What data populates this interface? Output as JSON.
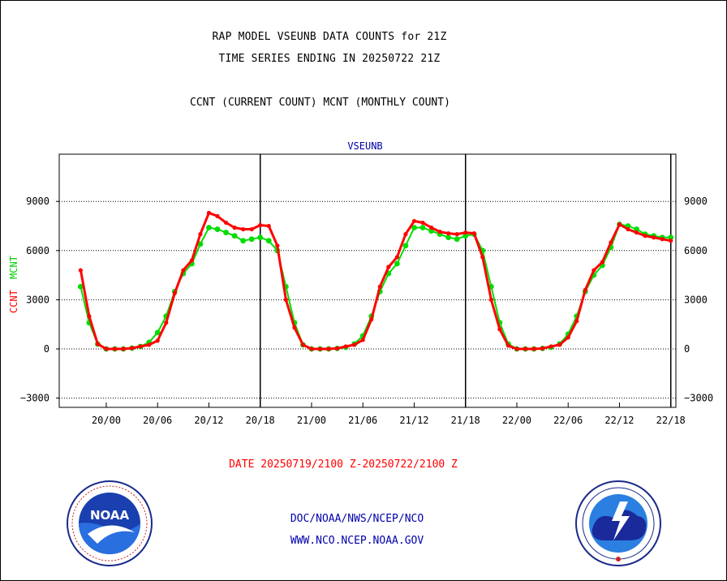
{
  "header": {
    "title_line1": "RAP MODEL VSEUNB DATA COUNTS for 21Z",
    "title_line2": "TIME SERIES ENDING IN 20250722 21Z",
    "subtitle": "CCNT (CURRENT COUNT) MCNT (MONTHLY COUNT)"
  },
  "footer": {
    "date_range": "DATE 20250719/2100 Z-20250722/2100 Z",
    "link1": "DOC/NOAA/NWS/NCEP/NCO",
    "link2": "WWW.NCO.NCEP.NOAA.GOV"
  },
  "logos": {
    "noaa_text": "NOAA",
    "noaa_ring": "NATIONAL OCEANIC AND ATMOSPHERIC ADMINISTRATION · U.S. DEPARTMENT OF COMMERCE",
    "nws_ring": "NATIONAL WEATHER SERVICE"
  },
  "colors": {
    "ccnt": "#ff0000",
    "mcnt": "#00dd00",
    "title": "#000000",
    "panel_label": "#0000aa"
  },
  "chart_data": {
    "type": "line",
    "title": "VSEUNB",
    "ylabel_left_ccnt": "CCNT",
    "ylabel_left_mcnt": "MCNT",
    "ylim": [
      -3500,
      12000
    ],
    "y_ticks": [
      -3000,
      0,
      3000,
      6000,
      9000
    ],
    "x_range_hours": [
      -3,
      69
    ],
    "x_ticks": [
      {
        "h": 3,
        "label": "20/00"
      },
      {
        "h": 9,
        "label": "20/06"
      },
      {
        "h": 15,
        "label": "20/12"
      },
      {
        "h": 21,
        "label": "20/18"
      },
      {
        "h": 27,
        "label": "21/00"
      },
      {
        "h": 33,
        "label": "21/06"
      },
      {
        "h": 39,
        "label": "21/12"
      },
      {
        "h": 45,
        "label": "21/18"
      },
      {
        "h": 51,
        "label": "22/00"
      },
      {
        "h": 57,
        "label": "22/06"
      },
      {
        "h": 63,
        "label": "22/12"
      },
      {
        "h": 69,
        "label": "22/18"
      }
    ],
    "day_boundaries_hours": [
      21,
      45,
      69
    ],
    "grid": "horizontal dotted",
    "series": [
      {
        "name": "CCNT",
        "color": "#ff0000",
        "x": [
          0,
          1,
          2,
          3,
          4,
          5,
          6,
          7,
          8,
          9,
          10,
          11,
          12,
          13,
          14,
          15,
          16,
          17,
          18,
          19,
          20,
          21,
          22,
          23,
          24,
          25,
          26,
          27,
          28,
          29,
          30,
          31,
          32,
          33,
          34,
          35,
          36,
          37,
          38,
          39,
          40,
          41,
          42,
          43,
          44,
          45,
          46,
          47,
          48,
          49,
          50,
          51,
          52,
          53,
          54,
          55,
          56,
          57,
          58,
          59,
          60,
          61,
          62,
          63,
          64,
          65,
          66,
          67,
          68,
          69,
          70,
          71,
          72
        ],
        "values": [
          4800,
          2000,
          300,
          0,
          0,
          0,
          50,
          150,
          250,
          500,
          1600,
          3400,
          4800,
          5400,
          7000,
          8300,
          8100,
          7700,
          7400,
          7300,
          7300,
          7550,
          7500,
          6300,
          3000,
          1300,
          250,
          0,
          0,
          0,
          30,
          150,
          250,
          550,
          1800,
          3800,
          5000,
          5600,
          7000,
          7800,
          7700,
          7400,
          7150,
          7050,
          7000,
          7100,
          7050,
          5600,
          3000,
          1200,
          200,
          0,
          0,
          0,
          30,
          150,
          250,
          700,
          1700,
          3600,
          4800,
          5300,
          6500,
          7600,
          7300,
          7100,
          6900,
          6800,
          6700,
          6600,
          6500,
          5000,
          3000
        ]
      },
      {
        "name": "MCNT",
        "color": "#00dd00",
        "x": [
          0,
          1,
          2,
          3,
          4,
          5,
          6,
          7,
          8,
          9,
          10,
          11,
          12,
          13,
          14,
          15,
          16,
          17,
          18,
          19,
          20,
          21,
          22,
          23,
          24,
          25,
          26,
          27,
          28,
          29,
          30,
          31,
          32,
          33,
          34,
          35,
          36,
          37,
          38,
          39,
          40,
          41,
          42,
          43,
          44,
          45,
          46,
          47,
          48,
          49,
          50,
          51,
          52,
          53,
          54,
          55,
          56,
          57,
          58,
          59,
          60,
          61,
          62,
          63,
          64,
          65,
          66,
          67,
          68,
          69,
          70,
          71,
          72
        ],
        "values": [
          3800,
          1600,
          300,
          0,
          0,
          0,
          50,
          150,
          400,
          1000,
          2000,
          3500,
          4600,
          5200,
          6400,
          7400,
          7300,
          7100,
          6900,
          6600,
          6700,
          6800,
          6600,
          6000,
          3800,
          1600,
          250,
          0,
          0,
          0,
          30,
          100,
          300,
          800,
          2000,
          3500,
          4600,
          5200,
          6300,
          7400,
          7400,
          7200,
          7000,
          6800,
          6700,
          6900,
          7000,
          6000,
          3800,
          1600,
          300,
          0,
          0,
          0,
          30,
          100,
          300,
          900,
          2000,
          3500,
          4500,
          5100,
          6200,
          7600,
          7500,
          7300,
          7000,
          6900,
          6800,
          6800,
          7000,
          6000,
          3800
        ]
      }
    ]
  }
}
